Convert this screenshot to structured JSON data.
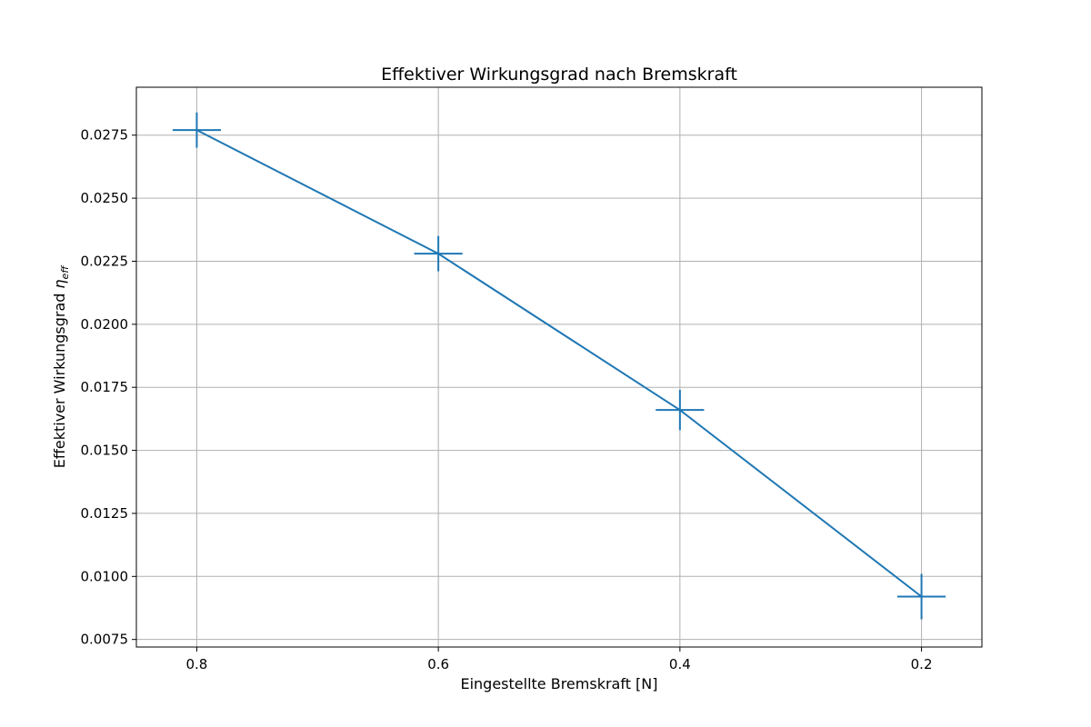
{
  "chart_data": {
    "type": "line",
    "title": "Effektiver Wirkungsgrad nach Bremskraft",
    "xlabel": "Eingestellte Bremskraft [N]",
    "ylabel": "Effektiver Wirkungsgrad",
    "ylabel_symbol": "η",
    "ylabel_subscript": "eff",
    "x_inverted": true,
    "xlim": [
      0.85,
      0.15
    ],
    "ylim": [
      0.0072,
      0.0294
    ],
    "x_ticks": [
      0.8,
      0.6,
      0.4,
      0.2
    ],
    "x_tick_labels": [
      "0.8",
      "0.6",
      "0.4",
      "0.2"
    ],
    "y_ticks": [
      0.0075,
      0.01,
      0.0125,
      0.015,
      0.0175,
      0.02,
      0.0225,
      0.025,
      0.0275
    ],
    "y_tick_labels": [
      "0.0075",
      "0.0100",
      "0.0125",
      "0.0150",
      "0.0175",
      "0.0200",
      "0.0225",
      "0.0250",
      "0.0275"
    ],
    "grid": true,
    "series": [
      {
        "color": "#1f77b4",
        "marker": "errorbar",
        "x": [
          0.8,
          0.6,
          0.4,
          0.2
        ],
        "y": [
          0.0277,
          0.0228,
          0.0166,
          0.0092
        ],
        "xerr": [
          0.02,
          0.02,
          0.02,
          0.02
        ],
        "yerr": [
          0.0007,
          0.0007,
          0.0008,
          0.0009
        ]
      }
    ]
  }
}
